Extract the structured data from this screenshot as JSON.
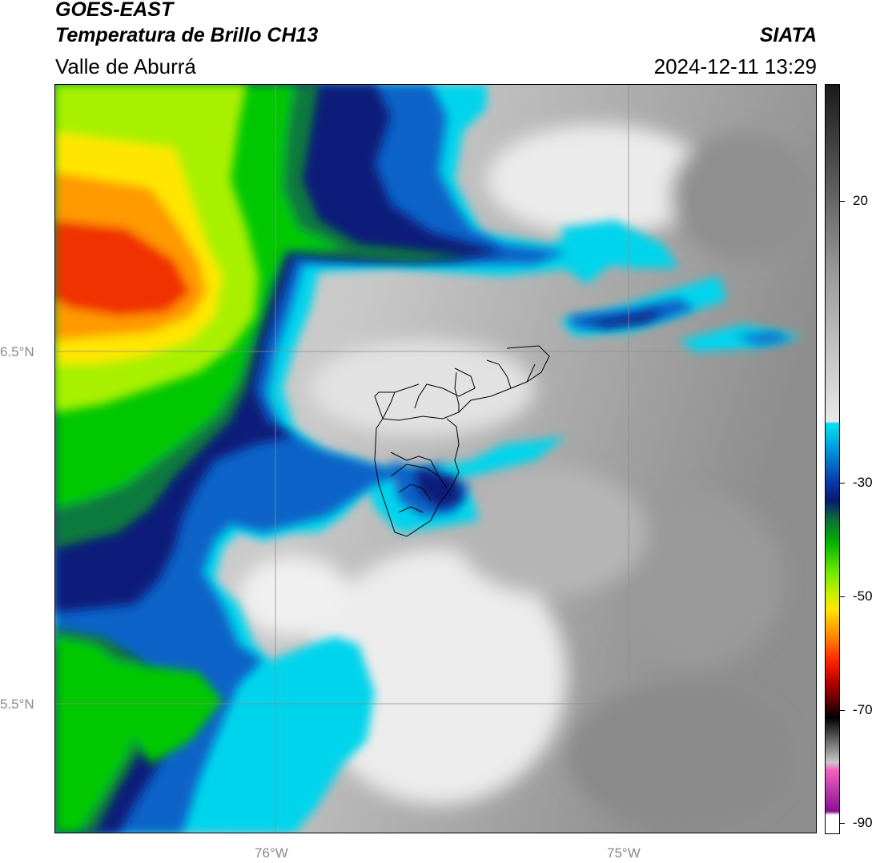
{
  "header": {
    "satellite": "GOES-EAST",
    "product": "Temperatura de Brillo CH13",
    "region": "Valle de Aburrá",
    "organization": "SIATA",
    "timestamp": "2024-12-11 13:29"
  },
  "map": {
    "lat_labels": [
      "6.5°N",
      "5.5°N"
    ],
    "lon_labels": [
      "76°W",
      "75°W"
    ],
    "gridline_color": "#8c8c8c",
    "outline_color": "#000000"
  },
  "colorbar": {
    "tick_labels": [
      "20",
      "-30",
      "-50",
      "-70",
      "-90"
    ],
    "range": [
      -90,
      33
    ],
    "colors": {
      "warm_gray_dark": "#1a1a1a",
      "warm_gray_light": "#e8e8e8",
      "cyan": "#00e5f0",
      "blue": "#0050b8",
      "navy": "#081a70",
      "dark_green": "#0f6b3c",
      "green": "#00c000",
      "lime": "#9ef000",
      "yellow": "#ffe600",
      "orange": "#ff8c00",
      "red": "#e60000",
      "dark_red": "#500000",
      "black": "#000000",
      "pink": "#f060c0",
      "purple": "#8a1090",
      "white": "#ffffff"
    }
  }
}
